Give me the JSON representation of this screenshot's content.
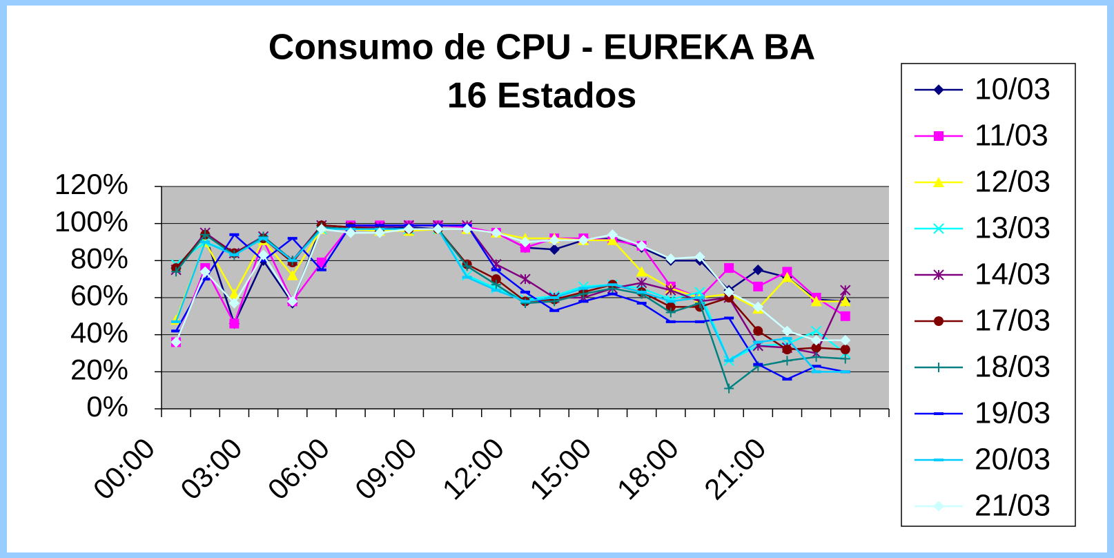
{
  "chart_data": {
    "type": "line",
    "title": "Consumo de CPU - EUREKA BA",
    "subtitle": "16 Estados",
    "categories": [
      "00:00",
      null,
      null,
      "03:00",
      null,
      null,
      "06:00",
      null,
      null,
      "09:00",
      null,
      null,
      "12:00",
      null,
      null,
      "15:00",
      null,
      null,
      "18:00",
      null,
      null,
      "21:00",
      null,
      null,
      null
    ],
    "ylim": [
      0,
      120
    ],
    "yticks": [
      {
        "value": 0,
        "label": "0%"
      },
      {
        "value": 20,
        "label": "20%"
      },
      {
        "value": 40,
        "label": "40%"
      },
      {
        "value": 60,
        "label": "60%"
      },
      {
        "value": 80,
        "label": "80%"
      },
      {
        "value": 100,
        "label": "100%"
      },
      {
        "value": 120,
        "label": "120%"
      }
    ],
    "grid": true,
    "legend": "right",
    "series": [
      {
        "name": "10/03",
        "color": "#000080",
        "marker": "diamond",
        "values": [
          76,
          94,
          46,
          80,
          57,
          99,
          98,
          97,
          98,
          97,
          97,
          95,
          87,
          86,
          91,
          92,
          87,
          80,
          80,
          64,
          75,
          71,
          59,
          58,
          null
        ]
      },
      {
        "name": "11/03",
        "color": "#ff00ff",
        "marker": "square",
        "values": [
          36,
          76,
          46,
          91,
          58,
          79,
          99,
          99,
          99,
          99,
          98,
          95,
          87,
          92,
          92,
          91,
          88,
          66,
          60,
          76,
          66,
          74,
          60,
          50,
          null
        ]
      },
      {
        "name": "12/03",
        "color": "#ffff00",
        "marker": "triangle",
        "values": [
          48,
          90,
          62,
          91,
          72,
          97,
          97,
          96,
          96,
          97,
          97,
          95,
          92,
          92,
          91,
          91,
          74,
          65,
          60,
          62,
          54,
          71,
          58,
          58,
          null
        ]
      },
      {
        "name": "13/03",
        "color": "#00ffff",
        "marker": "x",
        "values": [
          78,
          90,
          84,
          92,
          80,
          97,
          97,
          97,
          97,
          97,
          72,
          65,
          59,
          61,
          66,
          67,
          65,
          59,
          63,
          26,
          34,
          35,
          42,
          30,
          null
        ]
      },
      {
        "name": "14/03",
        "color": "#800080",
        "marker": "star",
        "values": [
          75,
          95,
          84,
          93,
          80,
          99,
          98,
          98,
          99,
          99,
          99,
          78,
          70,
          60,
          60,
          65,
          68,
          64,
          58,
          60,
          34,
          33,
          30,
          64,
          null
        ]
      },
      {
        "name": "17/03",
        "color": "#800000",
        "marker": "circle",
        "values": [
          76,
          94,
          84,
          92,
          79,
          99,
          98,
          97,
          97,
          97,
          78,
          70,
          58,
          59,
          63,
          67,
          63,
          55,
          55,
          60,
          42,
          32,
          33,
          32,
          null
        ]
      },
      {
        "name": "18/03",
        "color": "#008080",
        "marker": "plus",
        "values": [
          74,
          94,
          83,
          93,
          80,
          98,
          97,
          97,
          97,
          97,
          77,
          67,
          57,
          58,
          62,
          65,
          62,
          52,
          57,
          11,
          23,
          26,
          28,
          27,
          null
        ]
      },
      {
        "name": "19/03",
        "color": "#0000ff",
        "marker": "dash",
        "values": [
          42,
          70,
          94,
          80,
          92,
          75,
          99,
          99,
          99,
          99,
          99,
          75,
          63,
          53,
          58,
          62,
          57,
          47,
          47,
          49,
          24,
          16,
          23,
          20,
          null
        ]
      },
      {
        "name": "20/03",
        "color": "#00ccff",
        "marker": "dash",
        "values": [
          47,
          90,
          83,
          92,
          80,
          97,
          97,
          97,
          97,
          97,
          71,
          64,
          58,
          60,
          65,
          67,
          63,
          58,
          60,
          26,
          36,
          38,
          20,
          20,
          null
        ]
      },
      {
        "name": "21/03",
        "color": "#ccffff",
        "marker": "diamond",
        "values": [
          36,
          74,
          57,
          83,
          58,
          97,
          95,
          95,
          97,
          97,
          97,
          95,
          90,
          91,
          91,
          94,
          88,
          81,
          82,
          63,
          55,
          42,
          37,
          37,
          null
        ]
      }
    ]
  }
}
